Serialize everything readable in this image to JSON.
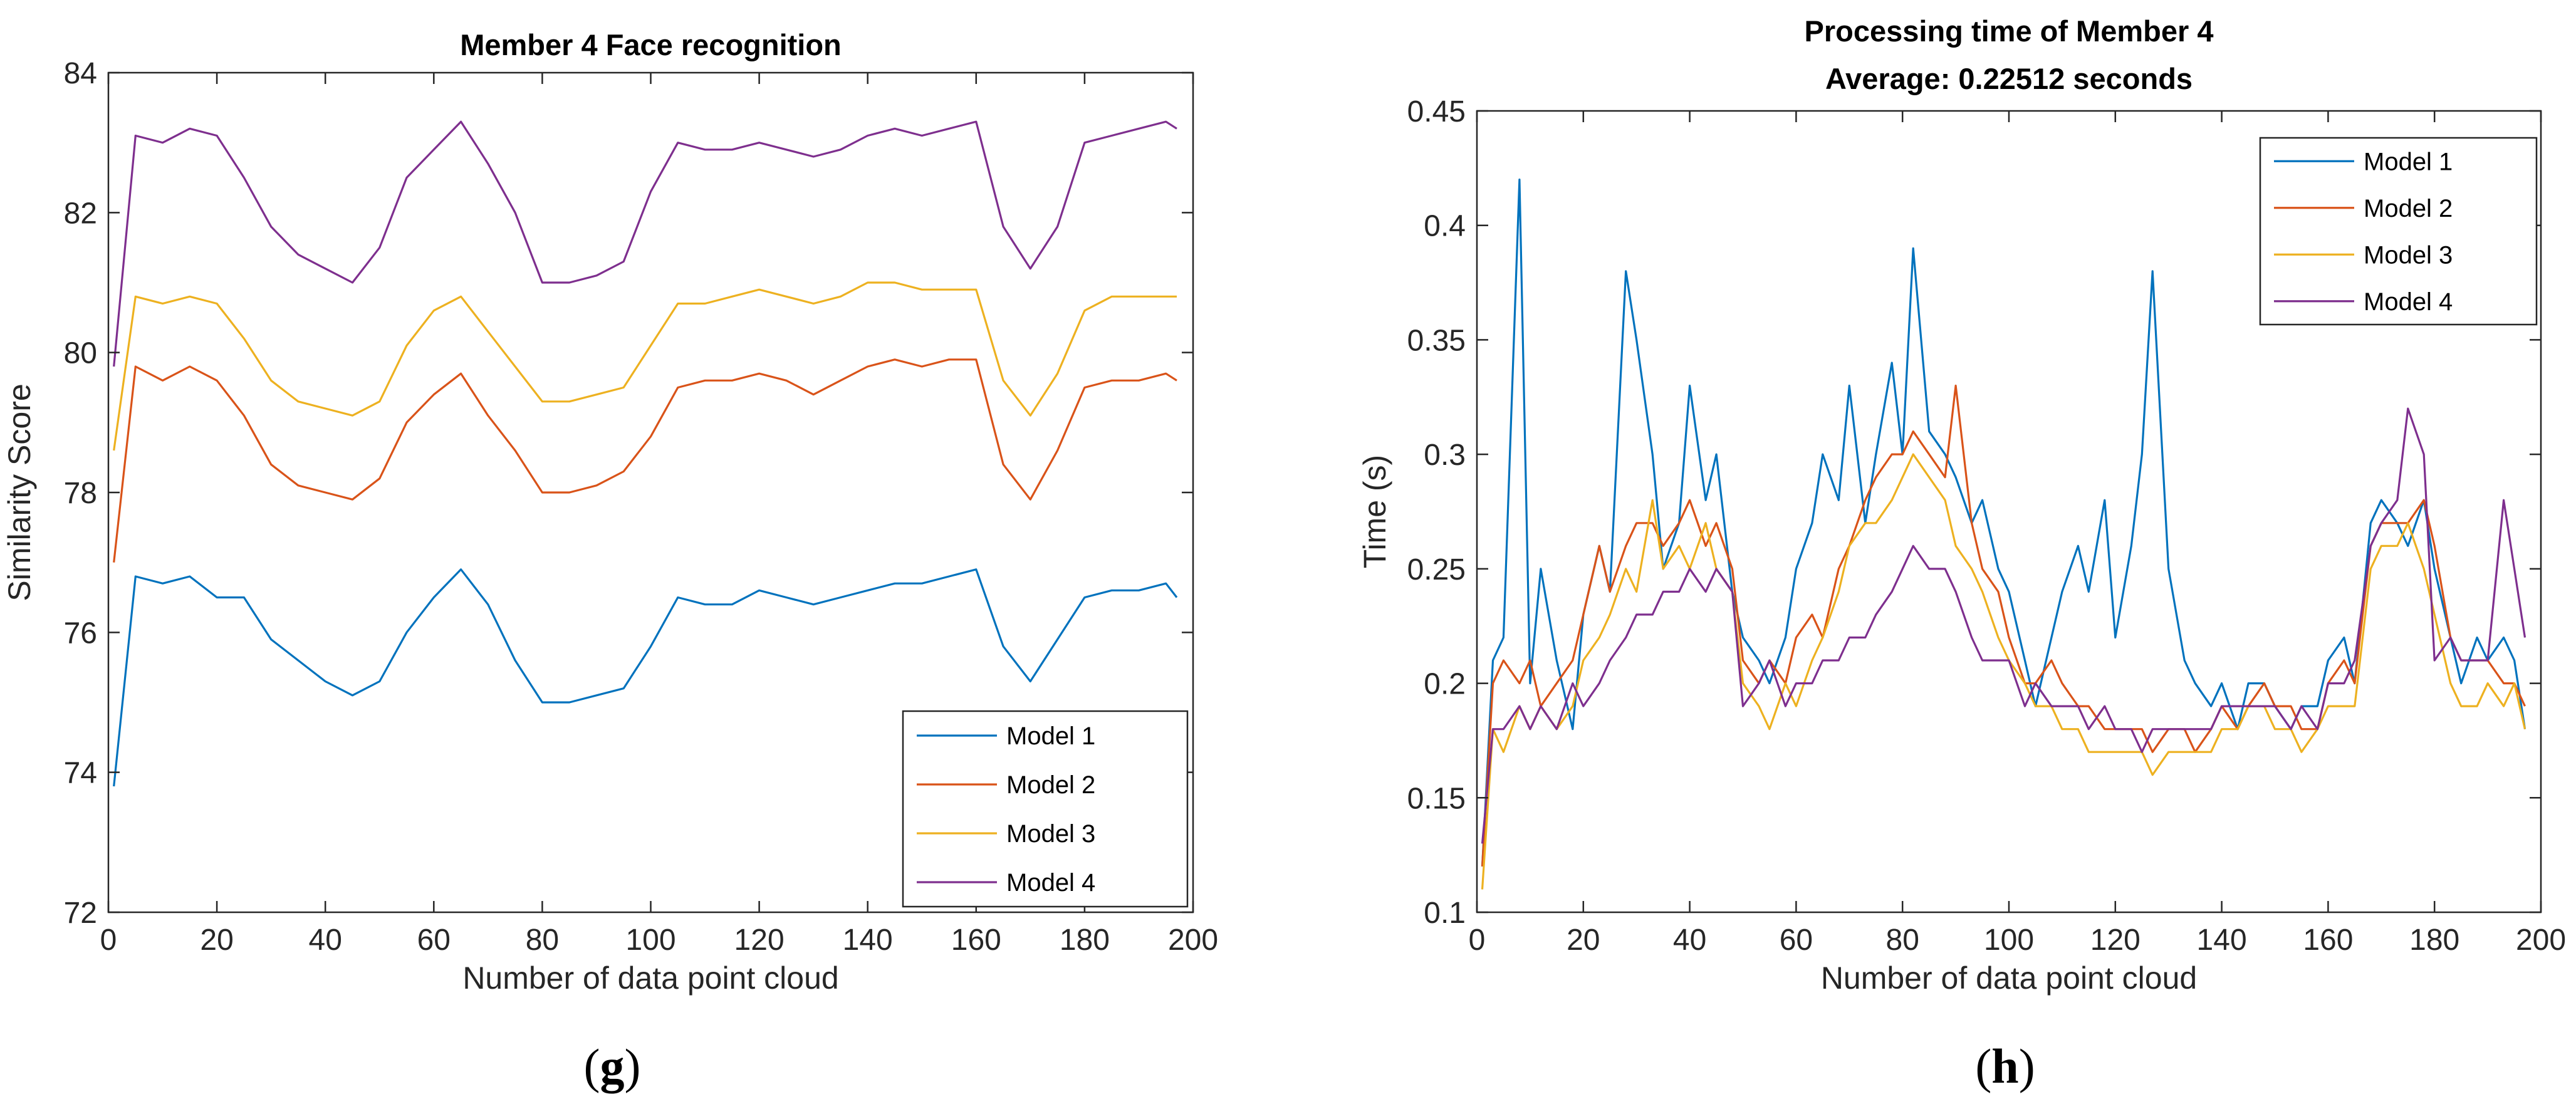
{
  "chart_data": [
    {
      "type": "line",
      "title": "Member 4 Face recognition",
      "xlabel": "Number of data point cloud",
      "ylabel": "Similarity Score",
      "xlim": [
        0,
        200
      ],
      "ylim": [
        72,
        84
      ],
      "xticks": [
        0,
        20,
        40,
        60,
        80,
        100,
        120,
        140,
        160,
        180,
        200
      ],
      "yticks": [
        72,
        74,
        76,
        78,
        80,
        82,
        84
      ],
      "legend_location": "bottom-right",
      "panel_label": "(g)",
      "panel_letter": "g",
      "x": [
        1,
        5,
        10,
        15,
        20,
        25,
        30,
        35,
        40,
        45,
        50,
        55,
        60,
        65,
        70,
        75,
        80,
        85,
        90,
        95,
        100,
        105,
        110,
        115,
        120,
        125,
        130,
        135,
        140,
        145,
        150,
        155,
        160,
        165,
        170,
        175,
        180,
        185,
        190,
        195,
        197
      ],
      "series": [
        {
          "name": "Model 1",
          "color": "#0072BD",
          "values": [
            73.8,
            76.8,
            76.7,
            76.8,
            76.5,
            76.5,
            75.9,
            75.6,
            75.3,
            75.1,
            75.3,
            76.0,
            76.5,
            76.9,
            76.4,
            75.6,
            75.0,
            75.0,
            75.1,
            75.2,
            75.8,
            76.5,
            76.4,
            76.4,
            76.6,
            76.5,
            76.4,
            76.5,
            76.6,
            76.7,
            76.7,
            76.8,
            76.9,
            75.8,
            75.3,
            75.9,
            76.5,
            76.6,
            76.6,
            76.7,
            76.5
          ]
        },
        {
          "name": "Model 2",
          "color": "#D95319",
          "values": [
            77.0,
            79.8,
            79.6,
            79.8,
            79.6,
            79.1,
            78.4,
            78.1,
            78.0,
            77.9,
            78.2,
            79.0,
            79.4,
            79.7,
            79.1,
            78.6,
            78.0,
            78.0,
            78.1,
            78.3,
            78.8,
            79.5,
            79.6,
            79.6,
            79.7,
            79.6,
            79.4,
            79.6,
            79.8,
            79.9,
            79.8,
            79.9,
            79.9,
            78.4,
            77.9,
            78.6,
            79.5,
            79.6,
            79.6,
            79.7,
            79.6
          ]
        },
        {
          "name": "Model 3",
          "color": "#EDB120",
          "values": [
            78.6,
            80.8,
            80.7,
            80.8,
            80.7,
            80.2,
            79.6,
            79.3,
            79.2,
            79.1,
            79.3,
            80.1,
            80.6,
            80.8,
            80.3,
            79.8,
            79.3,
            79.3,
            79.4,
            79.5,
            80.1,
            80.7,
            80.7,
            80.8,
            80.9,
            80.8,
            80.7,
            80.8,
            81.0,
            81.0,
            80.9,
            80.9,
            80.9,
            79.6,
            79.1,
            79.7,
            80.6,
            80.8,
            80.8,
            80.8,
            80.8
          ]
        },
        {
          "name": "Model 4",
          "color": "#7E2F8E",
          "values": [
            79.8,
            83.1,
            83.0,
            83.2,
            83.1,
            82.5,
            81.8,
            81.4,
            81.2,
            81.0,
            81.5,
            82.5,
            82.9,
            83.3,
            82.7,
            82.0,
            81.0,
            81.0,
            81.1,
            81.3,
            82.3,
            83.0,
            82.9,
            82.9,
            83.0,
            82.9,
            82.8,
            82.9,
            83.1,
            83.2,
            83.1,
            83.2,
            83.3,
            81.8,
            81.2,
            81.8,
            83.0,
            83.1,
            83.2,
            83.3,
            83.2
          ]
        }
      ]
    },
    {
      "type": "line",
      "title": [
        "Processing time of Member 4",
        "Average: 0.22512 seconds"
      ],
      "xlabel": "Number of data point cloud",
      "ylabel": "Time (s)",
      "xlim": [
        0,
        200
      ],
      "ylim": [
        0.1,
        0.45
      ],
      "xticks": [
        0,
        20,
        40,
        60,
        80,
        100,
        120,
        140,
        160,
        180,
        200
      ],
      "yticks": [
        0.1,
        0.15,
        0.2,
        0.25,
        0.3,
        0.35,
        0.4,
        0.45
      ],
      "legend_location": "top-right",
      "panel_label": "(h)",
      "panel_letter": "h",
      "x": [
        1,
        3,
        5,
        8,
        10,
        12,
        15,
        18,
        20,
        23,
        25,
        28,
        30,
        33,
        35,
        38,
        40,
        43,
        45,
        48,
        50,
        53,
        55,
        58,
        60,
        63,
        65,
        68,
        70,
        73,
        75,
        78,
        80,
        82,
        85,
        88,
        90,
        93,
        95,
        98,
        100,
        103,
        105,
        108,
        110,
        113,
        115,
        118,
        120,
        123,
        125,
        127,
        130,
        133,
        135,
        138,
        140,
        143,
        145,
        148,
        150,
        153,
        155,
        158,
        160,
        163,
        165,
        168,
        170,
        173,
        175,
        178,
        180,
        183,
        185,
        188,
        190,
        193,
        195,
        197
      ],
      "series": [
        {
          "name": "Model 1",
          "color": "#0072BD",
          "values": [
            0.12,
            0.21,
            0.22,
            0.42,
            0.2,
            0.25,
            0.21,
            0.18,
            0.23,
            0.26,
            0.24,
            0.38,
            0.35,
            0.3,
            0.25,
            0.27,
            0.33,
            0.28,
            0.3,
            0.24,
            0.22,
            0.21,
            0.2,
            0.22,
            0.25,
            0.27,
            0.3,
            0.28,
            0.33,
            0.27,
            0.3,
            0.34,
            0.3,
            0.39,
            0.31,
            0.3,
            0.29,
            0.27,
            0.28,
            0.25,
            0.24,
            0.21,
            0.19,
            0.22,
            0.24,
            0.26,
            0.24,
            0.28,
            0.22,
            0.26,
            0.3,
            0.38,
            0.25,
            0.21,
            0.2,
            0.19,
            0.2,
            0.18,
            0.2,
            0.2,
            0.19,
            0.18,
            0.19,
            0.19,
            0.21,
            0.22,
            0.2,
            0.27,
            0.28,
            0.27,
            0.26,
            0.28,
            0.25,
            0.22,
            0.2,
            0.22,
            0.21,
            0.22,
            0.21,
            0.18
          ]
        },
        {
          "name": "Model 2",
          "color": "#D95319",
          "values": [
            0.12,
            0.2,
            0.21,
            0.2,
            0.21,
            0.19,
            0.2,
            0.21,
            0.23,
            0.26,
            0.24,
            0.26,
            0.27,
            0.27,
            0.26,
            0.27,
            0.28,
            0.26,
            0.27,
            0.25,
            0.21,
            0.2,
            0.21,
            0.2,
            0.22,
            0.23,
            0.22,
            0.25,
            0.26,
            0.28,
            0.29,
            0.3,
            0.3,
            0.31,
            0.3,
            0.29,
            0.33,
            0.27,
            0.25,
            0.24,
            0.22,
            0.2,
            0.2,
            0.21,
            0.2,
            0.19,
            0.19,
            0.18,
            0.18,
            0.18,
            0.18,
            0.17,
            0.18,
            0.18,
            0.17,
            0.18,
            0.19,
            0.18,
            0.19,
            0.2,
            0.19,
            0.19,
            0.18,
            0.18,
            0.2,
            0.21,
            0.2,
            0.26,
            0.27,
            0.27,
            0.27,
            0.28,
            0.26,
            0.22,
            0.21,
            0.21,
            0.21,
            0.2,
            0.2,
            0.19
          ]
        },
        {
          "name": "Model 3",
          "color": "#EDB120",
          "values": [
            0.11,
            0.18,
            0.17,
            0.19,
            0.18,
            0.19,
            0.18,
            0.19,
            0.21,
            0.22,
            0.23,
            0.25,
            0.24,
            0.28,
            0.25,
            0.26,
            0.25,
            0.27,
            0.25,
            0.24,
            0.2,
            0.19,
            0.18,
            0.2,
            0.19,
            0.21,
            0.22,
            0.24,
            0.26,
            0.27,
            0.27,
            0.28,
            0.29,
            0.3,
            0.29,
            0.28,
            0.26,
            0.25,
            0.24,
            0.22,
            0.21,
            0.2,
            0.19,
            0.19,
            0.18,
            0.18,
            0.17,
            0.17,
            0.17,
            0.17,
            0.17,
            0.16,
            0.17,
            0.17,
            0.17,
            0.17,
            0.18,
            0.18,
            0.19,
            0.19,
            0.18,
            0.18,
            0.17,
            0.18,
            0.19,
            0.19,
            0.19,
            0.25,
            0.26,
            0.26,
            0.27,
            0.25,
            0.23,
            0.2,
            0.19,
            0.19,
            0.2,
            0.19,
            0.2,
            0.18
          ]
        },
        {
          "name": "Model 4",
          "color": "#7E2F8E",
          "values": [
            0.13,
            0.18,
            0.18,
            0.19,
            0.18,
            0.19,
            0.18,
            0.2,
            0.19,
            0.2,
            0.21,
            0.22,
            0.23,
            0.23,
            0.24,
            0.24,
            0.25,
            0.24,
            0.25,
            0.24,
            0.19,
            0.2,
            0.21,
            0.19,
            0.2,
            0.2,
            0.21,
            0.21,
            0.22,
            0.22,
            0.23,
            0.24,
            0.25,
            0.26,
            0.25,
            0.25,
            0.24,
            0.22,
            0.21,
            0.21,
            0.21,
            0.19,
            0.2,
            0.19,
            0.19,
            0.19,
            0.18,
            0.19,
            0.18,
            0.18,
            0.17,
            0.18,
            0.18,
            0.18,
            0.18,
            0.18,
            0.19,
            0.19,
            0.19,
            0.19,
            0.19,
            0.18,
            0.19,
            0.18,
            0.2,
            0.2,
            0.21,
            0.26,
            0.27,
            0.28,
            0.32,
            0.3,
            0.21,
            0.22,
            0.21,
            0.21,
            0.21,
            0.28,
            0.25,
            0.22
          ]
        }
      ]
    }
  ]
}
